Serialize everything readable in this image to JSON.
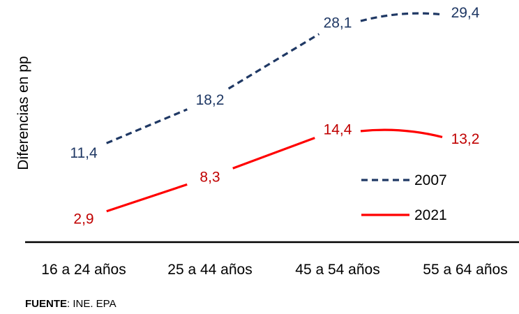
{
  "source": {
    "label": "FUENTE",
    "text": ": INE. EPA"
  },
  "chart_data": {
    "type": "line",
    "title": "",
    "xlabel": "",
    "ylabel": "Diferencias en pp",
    "categories": [
      "16 a 24 años",
      "25 a 44 años",
      "45 a 54 años",
      "55 a 64 años"
    ],
    "ylim": [
      0,
      31
    ],
    "grid": false,
    "legend_position": "right",
    "series": [
      {
        "name": "2007",
        "values": [
          11.4,
          18.2,
          28.1,
          29.4
        ],
        "labels": [
          "11,4",
          "18,2",
          "28,1",
          "29,4"
        ],
        "color": "#1f3864",
        "dash": "dashed"
      },
      {
        "name": "2021",
        "values": [
          2.9,
          8.3,
          14.4,
          13.2
        ],
        "labels": [
          "2,9",
          "8,3",
          "14,4",
          "13,2"
        ],
        "color": "#ff0000",
        "dash": "solid"
      }
    ],
    "label_colors": {
      "2007": "#1f3864",
      "2021": "#c00000"
    }
  }
}
